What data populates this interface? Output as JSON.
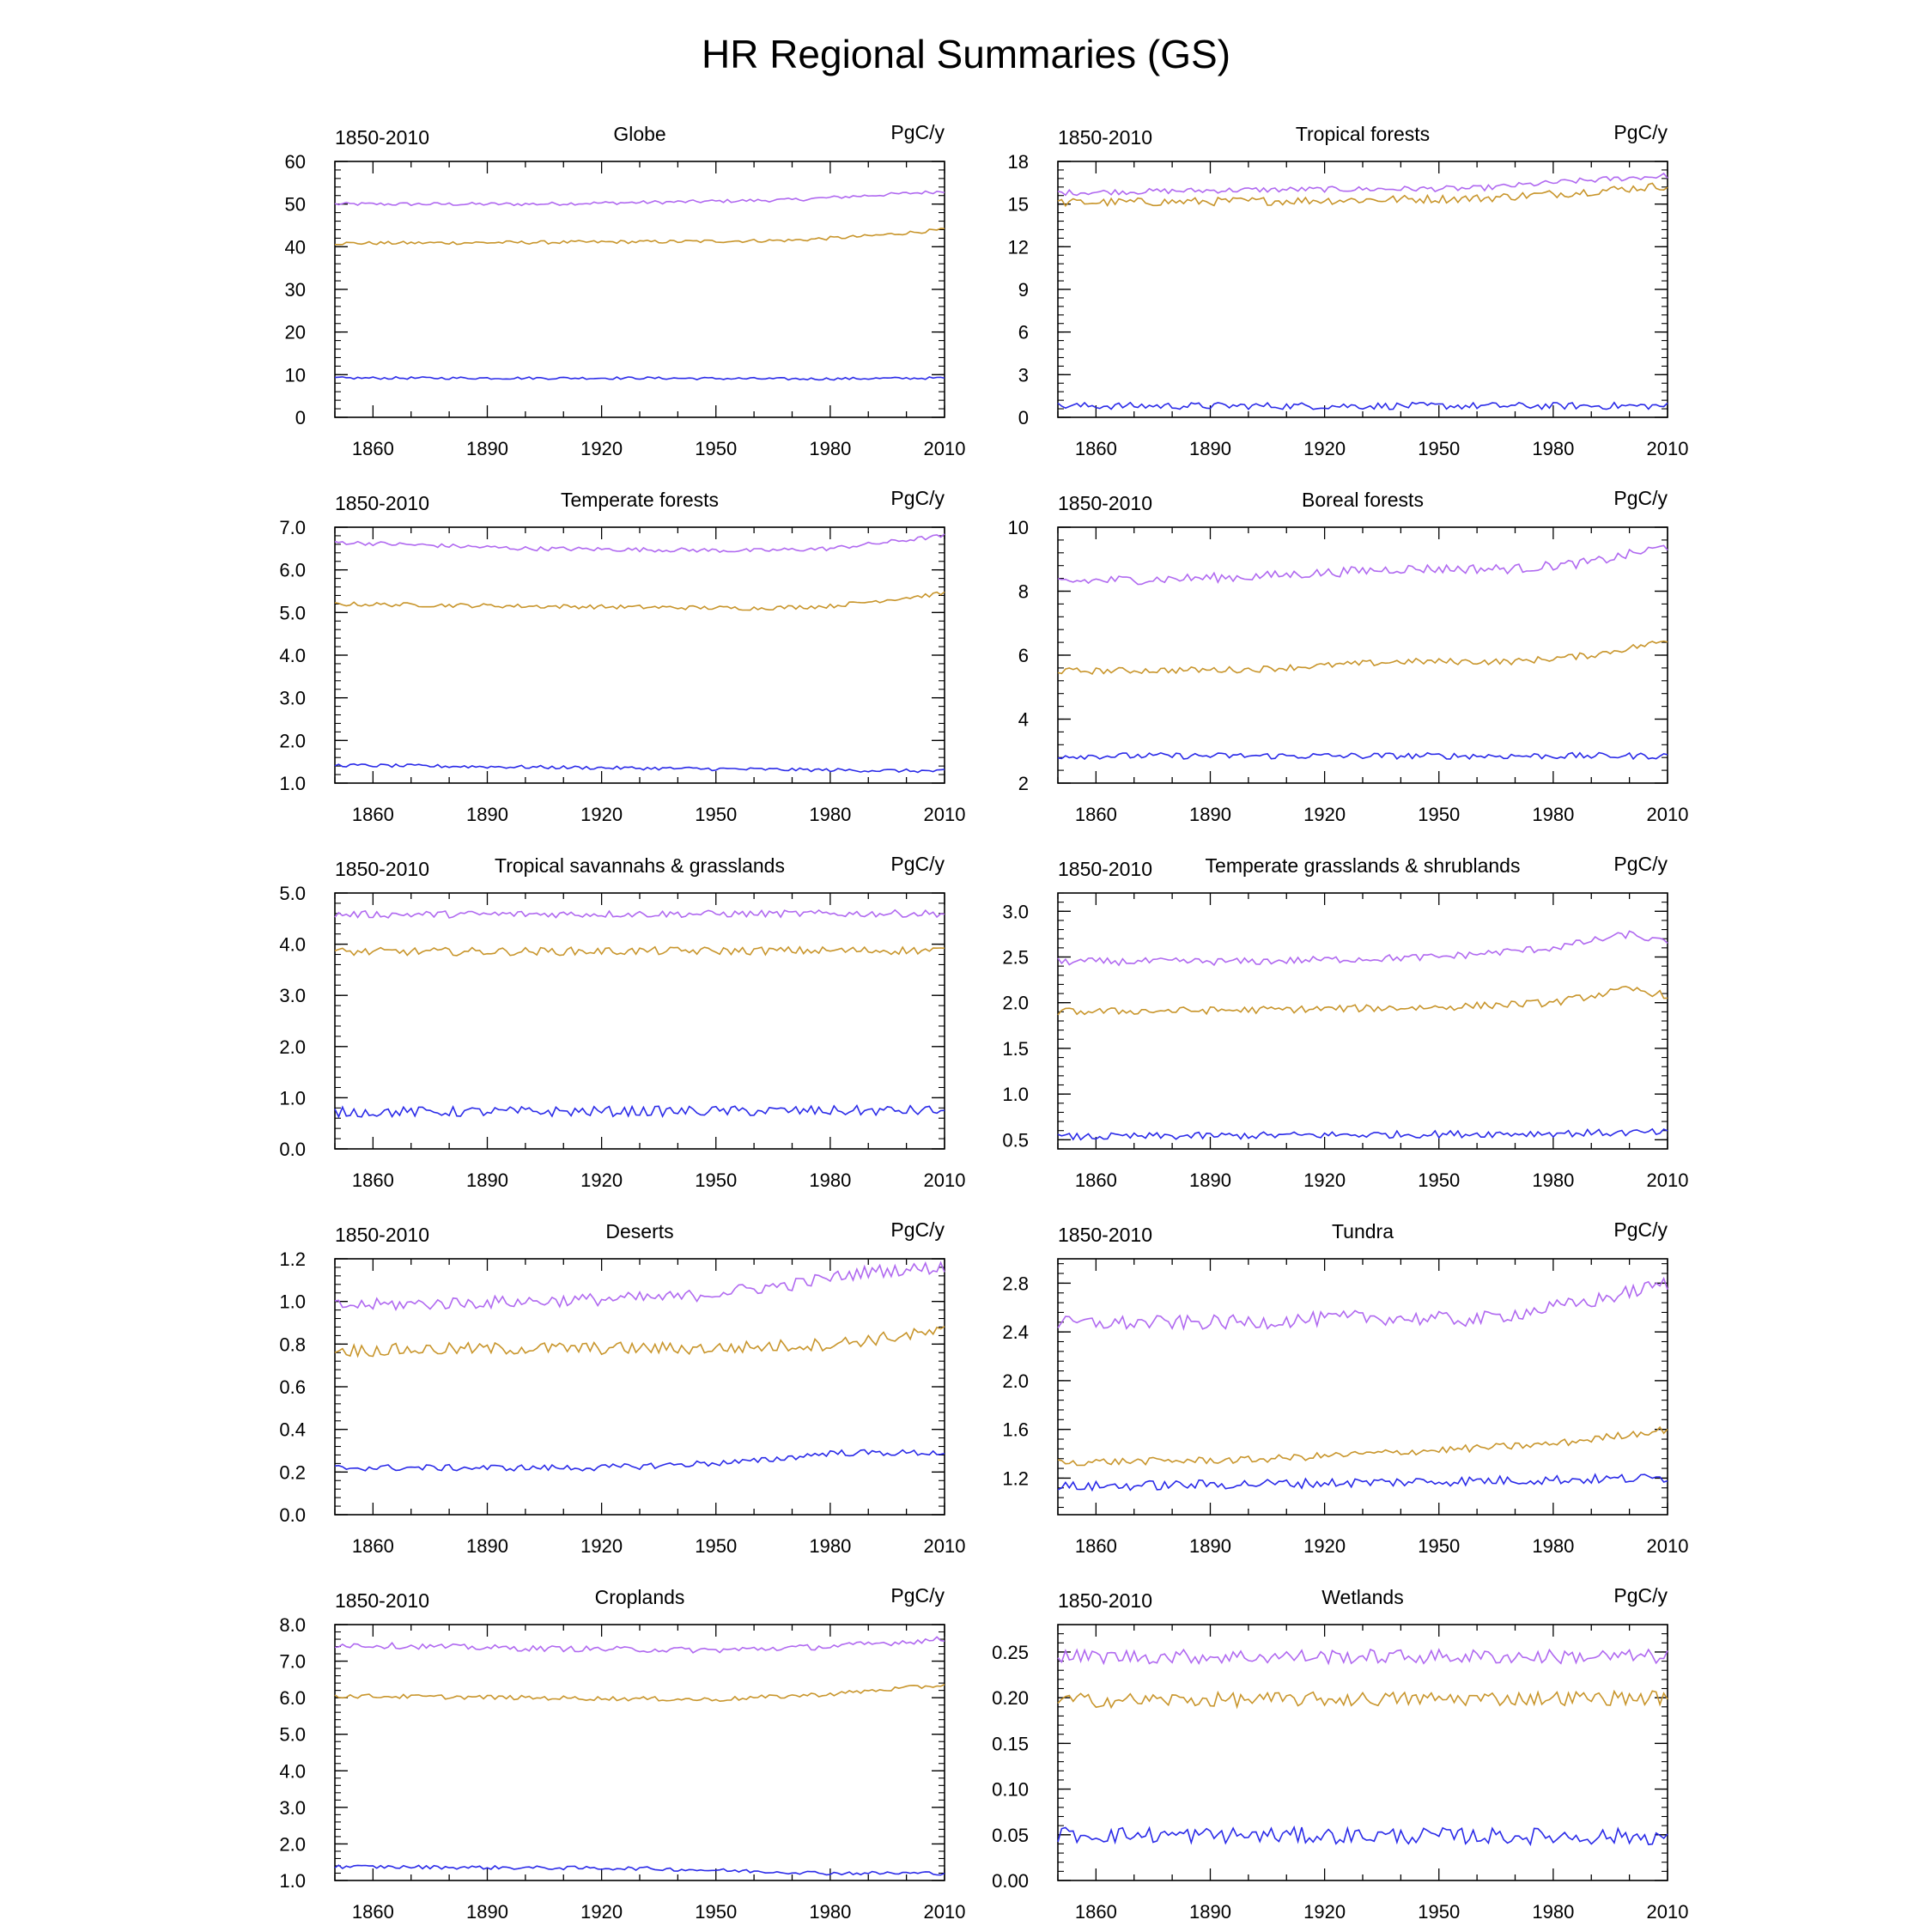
{
  "page": {
    "title": "HR Regional Summaries (GS)"
  },
  "series_colors": [
    "#b069f0",
    "#c8952b",
    "#2a2ae8"
  ],
  "chart_data": [
    {
      "type": "line",
      "title": "Globe",
      "period": "1850-2010",
      "unit": "PgC/y",
      "xlim": [
        1850,
        2010
      ],
      "ylim": [
        0,
        60
      ],
      "yticks": [
        "0",
        "10",
        "20",
        "30",
        "40",
        "50",
        "60"
      ],
      "xticks": [
        "1860",
        "1890",
        "1920",
        "1950",
        "1980",
        "2010"
      ],
      "series": [
        {
          "color": "#b069f0",
          "x": [
            1850,
            1900,
            1940,
            1970,
            1990,
            2010
          ],
          "y": [
            50,
            50,
            50.5,
            51,
            52,
            53
          ],
          "noise": 0.4
        },
        {
          "color": "#c8952b",
          "x": [
            1850,
            1900,
            1940,
            1970,
            1990,
            2010
          ],
          "y": [
            40.8,
            41,
            41.2,
            41.5,
            42.5,
            44
          ],
          "noise": 0.4
        },
        {
          "color": "#2a2ae8",
          "x": [
            1850,
            1930,
            1970,
            2010
          ],
          "y": [
            9.2,
            9.2,
            9,
            9.2
          ],
          "noise": 0.3
        }
      ]
    },
    {
      "type": "line",
      "title": "Tropical forests",
      "period": "1850-2010",
      "unit": "PgC/y",
      "xlim": [
        1850,
        2010
      ],
      "ylim": [
        0,
        18
      ],
      "yticks": [
        "0",
        "3",
        "6",
        "9",
        "12",
        "15",
        "18"
      ],
      "xticks": [
        "1860",
        "1890",
        "1920",
        "1950",
        "1980",
        "2010"
      ],
      "series": [
        {
          "color": "#b069f0",
          "x": [
            1850,
            1900,
            1960,
            1985,
            2010
          ],
          "y": [
            15.8,
            16,
            16.1,
            16.6,
            17
          ],
          "noise": 0.2
        },
        {
          "color": "#c8952b",
          "x": [
            1850,
            1900,
            1960,
            1985,
            2010
          ],
          "y": [
            15.1,
            15.2,
            15.4,
            15.8,
            16.3
          ],
          "noise": 0.3
        },
        {
          "color": "#2a2ae8",
          "x": [
            1850,
            2010
          ],
          "y": [
            0.8,
            0.8
          ],
          "noise": 0.25
        }
      ]
    },
    {
      "type": "line",
      "title": "Temperate forests",
      "period": "1850-2010",
      "unit": "PgC/y",
      "xlim": [
        1850,
        2010
      ],
      "ylim": [
        1.0,
        7.0
      ],
      "yticks": [
        "1.0",
        "2.0",
        "3.0",
        "4.0",
        "5.0",
        "6.0",
        "7.0"
      ],
      "xticks": [
        "1860",
        "1890",
        "1920",
        "1950",
        "1980",
        "2010"
      ],
      "series": [
        {
          "color": "#b069f0",
          "x": [
            1850,
            1900,
            1960,
            1980,
            2010
          ],
          "y": [
            6.65,
            6.5,
            6.45,
            6.5,
            6.8
          ],
          "noise": 0.05
        },
        {
          "color": "#c8952b",
          "x": [
            1850,
            1900,
            1960,
            1980,
            2010
          ],
          "y": [
            5.2,
            5.15,
            5.1,
            5.15,
            5.45
          ],
          "noise": 0.05
        },
        {
          "color": "#2a2ae8",
          "x": [
            1850,
            1930,
            2010
          ],
          "y": [
            1.42,
            1.35,
            1.28
          ],
          "noise": 0.04
        }
      ]
    },
    {
      "type": "line",
      "title": "Boreal forests",
      "period": "1850-2010",
      "unit": "PgC/y",
      "xlim": [
        1850,
        2010
      ],
      "ylim": [
        2,
        10
      ],
      "yticks": [
        "2",
        "4",
        "6",
        "8",
        "10"
      ],
      "xticks": [
        "1860",
        "1890",
        "1920",
        "1950",
        "1980",
        "2010"
      ],
      "series": [
        {
          "color": "#b069f0",
          "x": [
            1850,
            1900,
            1940,
            1970,
            1990,
            2010
          ],
          "y": [
            8.3,
            8.45,
            8.7,
            8.7,
            8.9,
            9.4
          ],
          "noise": 0.15
        },
        {
          "color": "#c8952b",
          "x": [
            1850,
            1900,
            1940,
            1970,
            1990,
            2010
          ],
          "y": [
            5.5,
            5.55,
            5.8,
            5.8,
            6.0,
            6.45
          ],
          "noise": 0.1
        },
        {
          "color": "#2a2ae8",
          "x": [
            1850,
            1930,
            2010
          ],
          "y": [
            2.85,
            2.85,
            2.85
          ],
          "noise": 0.1
        }
      ]
    },
    {
      "type": "line",
      "title": "Tropical savannahs & grasslands",
      "period": "1850-2010",
      "unit": "PgC/y",
      "xlim": [
        1850,
        2010
      ],
      "ylim": [
        0.0,
        5.0
      ],
      "yticks": [
        "0.0",
        "1.0",
        "2.0",
        "3.0",
        "4.0",
        "5.0"
      ],
      "xticks": [
        "1860",
        "1890",
        "1920",
        "1950",
        "1980",
        "2010"
      ],
      "series": [
        {
          "color": "#b069f0",
          "x": [
            1850,
            2010
          ],
          "y": [
            4.58,
            4.6
          ],
          "noise": 0.07
        },
        {
          "color": "#c8952b",
          "x": [
            1850,
            2010
          ],
          "y": [
            3.85,
            3.88
          ],
          "noise": 0.08
        },
        {
          "color": "#2a2ae8",
          "x": [
            1850,
            2010
          ],
          "y": [
            0.72,
            0.75
          ],
          "noise": 0.1
        }
      ]
    },
    {
      "type": "line",
      "title": "Temperate grasslands & shrublands",
      "period": "1850-2010",
      "unit": "PgC/y",
      "xlim": [
        1850,
        2010
      ],
      "ylim": [
        0.4,
        3.2
      ],
      "yticks": [
        "0.5",
        "1.0",
        "1.5",
        "2.0",
        "2.5",
        "3.0"
      ],
      "xticks": [
        "1860",
        "1890",
        "1920",
        "1950",
        "1980",
        "2010"
      ],
      "series": [
        {
          "color": "#b069f0",
          "x": [
            1850,
            1900,
            1950,
            1980,
            2000,
            2010
          ],
          "y": [
            2.45,
            2.45,
            2.5,
            2.6,
            2.75,
            2.65
          ],
          "noise": 0.04
        },
        {
          "color": "#c8952b",
          "x": [
            1850,
            1900,
            1950,
            1980,
            2000,
            2010
          ],
          "y": [
            1.9,
            1.92,
            1.95,
            2.0,
            2.15,
            2.08
          ],
          "noise": 0.04
        },
        {
          "color": "#2a2ae8",
          "x": [
            1850,
            2010
          ],
          "y": [
            0.53,
            0.58
          ],
          "noise": 0.04
        }
      ]
    },
    {
      "type": "line",
      "title": "Deserts",
      "period": "1850-2010",
      "unit": "PgC/y",
      "xlim": [
        1850,
        2010
      ],
      "ylim": [
        0.0,
        1.2
      ],
      "yticks": [
        "0.0",
        "0.2",
        "0.4",
        "0.6",
        "0.8",
        "1.0",
        "1.2"
      ],
      "xticks": [
        "1860",
        "1890",
        "1920",
        "1950",
        "1980",
        "2010"
      ],
      "series": [
        {
          "color": "#b069f0",
          "x": [
            1850,
            1900,
            1940,
            1970,
            1990,
            2010
          ],
          "y": [
            0.98,
            1.0,
            1.02,
            1.08,
            1.14,
            1.16
          ],
          "noise": 0.03
        },
        {
          "color": "#c8952b",
          "x": [
            1850,
            1900,
            1950,
            1980,
            2010
          ],
          "y": [
            0.77,
            0.78,
            0.78,
            0.8,
            0.86
          ],
          "noise": 0.03
        },
        {
          "color": "#2a2ae8",
          "x": [
            1850,
            1920,
            1960,
            1980,
            2010
          ],
          "y": [
            0.22,
            0.22,
            0.25,
            0.29,
            0.29
          ],
          "noise": 0.015
        }
      ]
    },
    {
      "type": "line",
      "title": "Tundra",
      "period": "1850-2010",
      "unit": "PgC/y",
      "xlim": [
        1850,
        2010
      ],
      "ylim": [
        0.9,
        3.0
      ],
      "yticks": [
        "1.2",
        "1.6",
        "2.0",
        "2.4",
        "2.8"
      ],
      "xticks": [
        "1860",
        "1890",
        "1920",
        "1950",
        "1980",
        "2010"
      ],
      "series": [
        {
          "color": "#b069f0",
          "x": [
            1850,
            1900,
            1930,
            1960,
            1990,
            2010
          ],
          "y": [
            2.47,
            2.48,
            2.52,
            2.5,
            2.65,
            2.8
          ],
          "noise": 0.06
        },
        {
          "color": "#c8952b",
          "x": [
            1850,
            1900,
            1950,
            1980,
            2010
          ],
          "y": [
            1.33,
            1.35,
            1.43,
            1.48,
            1.6
          ],
          "noise": 0.03
        },
        {
          "color": "#2a2ae8",
          "x": [
            1850,
            2010
          ],
          "y": [
            1.13,
            1.2
          ],
          "noise": 0.04
        }
      ]
    },
    {
      "type": "line",
      "title": "Croplands",
      "period": "1850-2010",
      "unit": "PgC/y",
      "xlim": [
        1850,
        2010
      ],
      "ylim": [
        1.0,
        8.0
      ],
      "yticks": [
        "1.0",
        "2.0",
        "3.0",
        "4.0",
        "5.0",
        "6.0",
        "7.0",
        "8.0"
      ],
      "xticks": [
        "1860",
        "1890",
        "1920",
        "1950",
        "1980",
        "2010"
      ],
      "series": [
        {
          "color": "#b069f0",
          "x": [
            1850,
            1900,
            1950,
            1980,
            2010
          ],
          "y": [
            7.45,
            7.35,
            7.3,
            7.4,
            7.6
          ],
          "noise": 0.08
        },
        {
          "color": "#c8952b",
          "x": [
            1850,
            1900,
            1950,
            1980,
            2010
          ],
          "y": [
            6.05,
            6.0,
            5.95,
            6.1,
            6.35
          ],
          "noise": 0.06
        },
        {
          "color": "#2a2ae8",
          "x": [
            1850,
            1930,
            1980,
            2010
          ],
          "y": [
            1.38,
            1.33,
            1.2,
            1.2
          ],
          "noise": 0.05
        }
      ]
    },
    {
      "type": "line",
      "title": "Wetlands",
      "period": "1850-2010",
      "unit": "PgC/y",
      "xlim": [
        1850,
        2010
      ],
      "ylim": [
        0.0,
        0.28
      ],
      "yticks": [
        "0.00",
        "0.05",
        "0.10",
        "0.15",
        "0.20",
        "0.25"
      ],
      "xticks": [
        "1860",
        "1890",
        "1920",
        "1950",
        "1980",
        "2010"
      ],
      "series": [
        {
          "color": "#b069f0",
          "x": [
            1850,
            2010
          ],
          "y": [
            0.245,
            0.245
          ],
          "noise": 0.008
        },
        {
          "color": "#c8952b",
          "x": [
            1850,
            2010
          ],
          "y": [
            0.197,
            0.2
          ],
          "noise": 0.008
        },
        {
          "color": "#2a2ae8",
          "x": [
            1850,
            2010
          ],
          "y": [
            0.05,
            0.048
          ],
          "noise": 0.009
        }
      ]
    }
  ]
}
